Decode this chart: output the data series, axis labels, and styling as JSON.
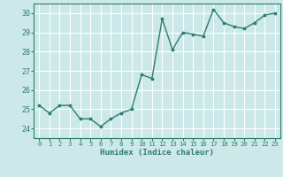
{
  "x": [
    0,
    1,
    2,
    3,
    4,
    5,
    6,
    7,
    8,
    9,
    10,
    11,
    12,
    13,
    14,
    15,
    16,
    17,
    18,
    19,
    20,
    21,
    22,
    23
  ],
  "y": [
    25.2,
    24.8,
    25.2,
    25.2,
    24.5,
    24.5,
    24.1,
    24.5,
    24.8,
    25.0,
    26.8,
    26.6,
    29.7,
    28.1,
    29.0,
    28.9,
    28.8,
    30.2,
    29.5,
    29.3,
    29.2,
    29.5,
    29.9,
    30.0
  ],
  "line_color": "#2e7d6e",
  "bg_color": "#cce8e8",
  "grid_color": "#ffffff",
  "axis_color": "#2e7d6e",
  "tick_color": "#2e7d6e",
  "xlabel": "Humidex (Indice chaleur)",
  "ylim": [
    23.5,
    30.5
  ],
  "yticks": [
    24,
    25,
    26,
    27,
    28,
    29,
    30
  ],
  "xlim": [
    -0.5,
    23.5
  ],
  "xticks": [
    0,
    1,
    2,
    3,
    4,
    5,
    6,
    7,
    8,
    9,
    10,
    11,
    12,
    13,
    14,
    15,
    16,
    17,
    18,
    19,
    20,
    21,
    22,
    23
  ]
}
